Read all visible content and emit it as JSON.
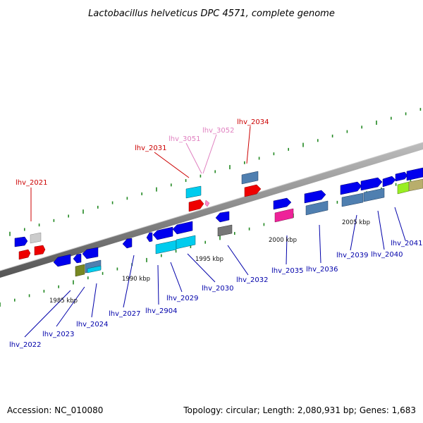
{
  "title": "Lactobacillus helveticus DPC 4571, complete genome",
  "footer": {
    "accession": "Accession: NC_010080",
    "summary": "Topology: circular; Length: 2,080,931 bp; Genes: 1,683"
  },
  "kbp_labels": [
    "1985 kbp",
    "1990 kbp",
    "1995 kbp",
    "2000 kbp",
    "2005 kbp"
  ],
  "genes": [
    {
      "id": "lhv_2021",
      "label": "lhv_2021",
      "color": "#cc0000"
    },
    {
      "id": "lhv_2022",
      "label": "lhv_2022",
      "color": "#0000aa"
    },
    {
      "id": "lhv_2023",
      "label": "lhv_2023",
      "color": "#0000aa"
    },
    {
      "id": "lhv_2024",
      "label": "lhv_2024",
      "color": "#0000aa"
    },
    {
      "id": "lhv_2027",
      "label": "lhv_2027",
      "color": "#0000aa"
    },
    {
      "id": "lhv_2904",
      "label": "lhv_2904",
      "color": "#0000aa"
    },
    {
      "id": "lhv_2029",
      "label": "lhv_2029",
      "color": "#0000aa"
    },
    {
      "id": "lhv_2030",
      "label": "lhv_2030",
      "color": "#0000aa"
    },
    {
      "id": "lhv_2031",
      "label": "lhv_2031",
      "color": "#cc0000"
    },
    {
      "id": "lhv_3051",
      "label": "lhv_3051",
      "color": "#e080c0"
    },
    {
      "id": "lhv_3052",
      "label": "lhv_3052",
      "color": "#e080c0"
    },
    {
      "id": "lhv_2034",
      "label": "lhv_2034",
      "color": "#cc0000"
    },
    {
      "id": "lhv_2032",
      "label": "lhv_2032",
      "color": "#0000aa"
    },
    {
      "id": "lhv_2035",
      "label": "lhv_2035",
      "color": "#0000aa"
    },
    {
      "id": "lhv_2036",
      "label": "lhv_2036",
      "color": "#0000aa"
    },
    {
      "id": "lhv_2039",
      "label": "lhv_2039",
      "color": "#0000aa"
    },
    {
      "id": "lhv_2040",
      "label": "lhv_2040",
      "color": "#0000aa"
    },
    {
      "id": "lhv_2041",
      "label": "lhv_2041",
      "color": "#0000aa"
    }
  ]
}
